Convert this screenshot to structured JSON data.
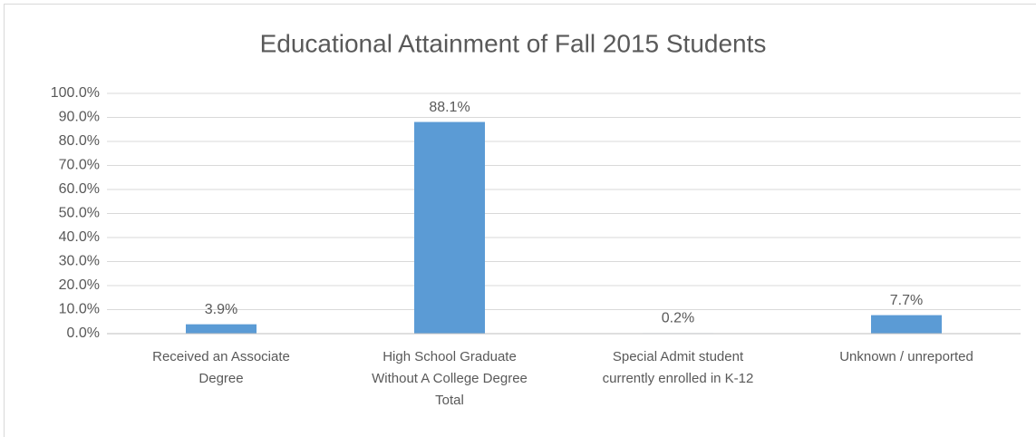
{
  "chart_data": {
    "type": "bar",
    "title": "Educational Attainment of Fall 2015 Students",
    "categories": [
      "Received an Associate Degree",
      "High School Graduate Without A College Degree Total",
      "Special Admit student currently enrolled in K-12",
      "Unknown / unreported"
    ],
    "values": [
      3.9,
      88.1,
      0.2,
      7.7
    ],
    "value_labels": [
      "3.9%",
      "88.1%",
      "0.2%",
      "7.7%"
    ],
    "color": "#5b9bd5",
    "ylim": [
      0,
      100
    ],
    "yticks": [
      {
        "value": 0,
        "label": "0.0%"
      },
      {
        "value": 10,
        "label": "10.0%"
      },
      {
        "value": 20,
        "label": "20.0%"
      },
      {
        "value": 30,
        "label": "30.0%"
      },
      {
        "value": 40,
        "label": "40.0%"
      },
      {
        "value": 50,
        "label": "50.0%"
      },
      {
        "value": 60,
        "label": "60.0%"
      },
      {
        "value": 70,
        "label": "70.0%"
      },
      {
        "value": 80,
        "label": "80.0%"
      },
      {
        "value": 90,
        "label": "90.0%"
      },
      {
        "value": 100,
        "label": "100.0%"
      }
    ],
    "grid": true
  }
}
